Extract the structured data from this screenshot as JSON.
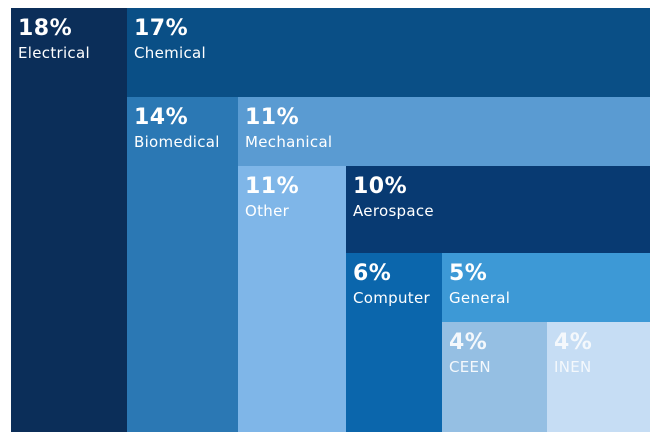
{
  "chart_data": {
    "type": "treemap",
    "title": "",
    "items": [
      {
        "label": "Electrical",
        "pct_text": "18%",
        "value": 18,
        "color": "#0b2e59"
      },
      {
        "label": "Chemical",
        "pct_text": "17%",
        "value": 17,
        "color": "#0a4f86"
      },
      {
        "label": "Biomedical",
        "pct_text": "14%",
        "value": 14,
        "color": "#2b78b4"
      },
      {
        "label": "Mechanical",
        "pct_text": "11%",
        "value": 11,
        "color": "#5a9bd2"
      },
      {
        "label": "Other",
        "pct_text": "11%",
        "value": 11,
        "color": "#7fb6e8"
      },
      {
        "label": "Aerospace",
        "pct_text": "10%",
        "value": 10,
        "color": "#083a72"
      },
      {
        "label": "Computer",
        "pct_text": "6%",
        "value": 6,
        "color": "#0b66ac"
      },
      {
        "label": "General",
        "pct_text": "5%",
        "value": 5,
        "color": "#3d99d6"
      },
      {
        "label": "CEEN",
        "pct_text": "4%",
        "value": 4,
        "color": "#95bfe3"
      },
      {
        "label": "INEN",
        "pct_text": "4%",
        "value": 4,
        "color": "#c6ddf4"
      }
    ]
  }
}
